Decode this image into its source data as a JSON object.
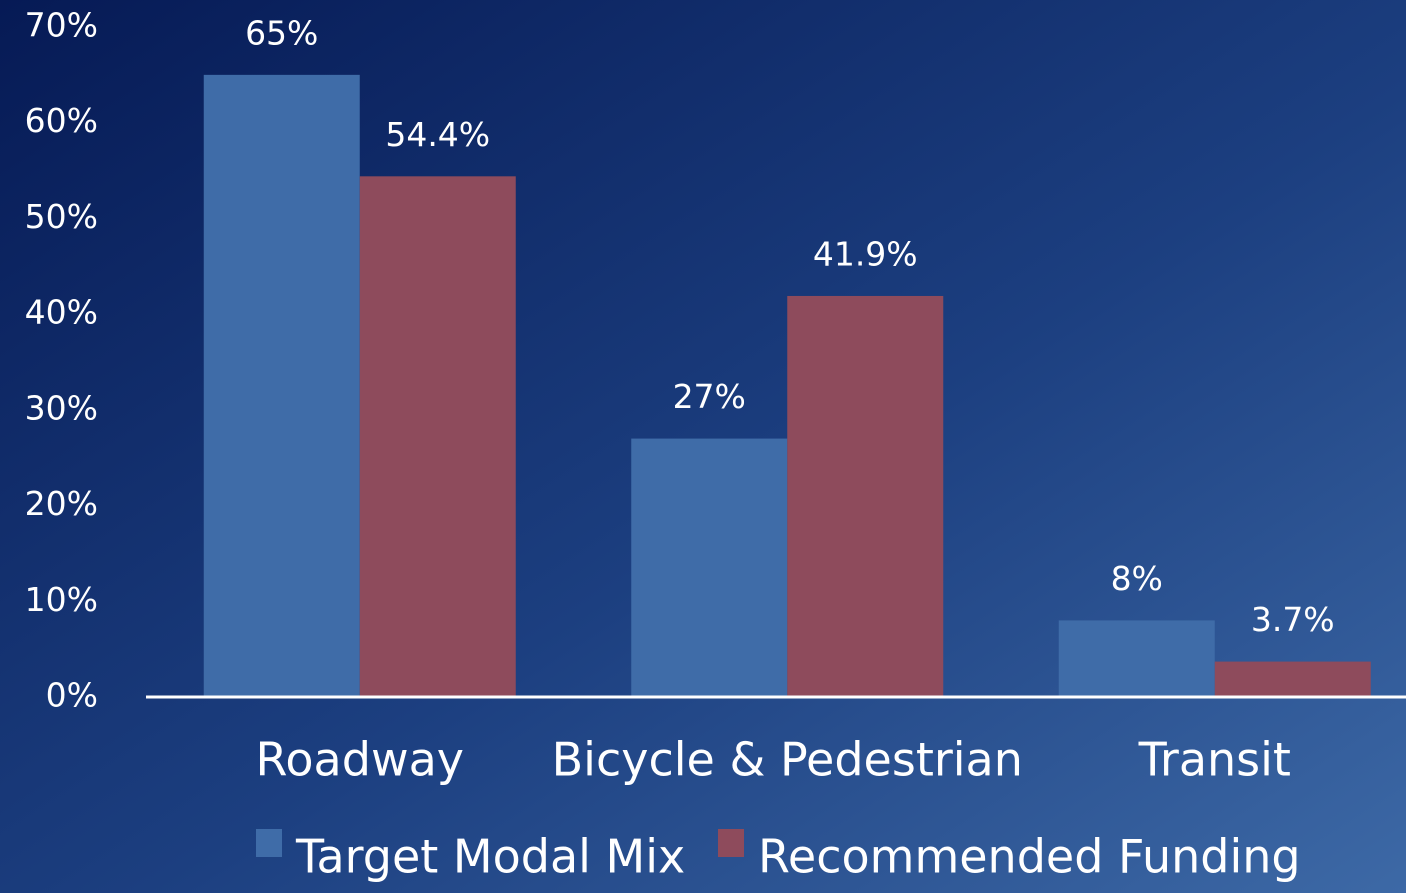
{
  "chart_data": {
    "type": "bar",
    "categories": [
      "Roadway",
      "Bicycle & Pedestrian",
      "Transit"
    ],
    "series": [
      {
        "name": "Target Modal Mix",
        "color": "#3f6ca8",
        "values": [
          65,
          27,
          8
        ],
        "value_labels": [
          "65%",
          "27%",
          "8%"
        ]
      },
      {
        "name": "Recommended Funding",
        "color": "#8e4b5c",
        "values": [
          54.4,
          41.9,
          3.7
        ],
        "value_labels": [
          "54.4%",
          "41.9%",
          "3.7%"
        ]
      }
    ],
    "ylim": [
      0,
      70
    ],
    "yticks": [
      {
        "value": 0,
        "label": "0%"
      },
      {
        "value": 10,
        "label": "10%"
      },
      {
        "value": 20,
        "label": "20%"
      },
      {
        "value": 30,
        "label": "30%"
      },
      {
        "value": 40,
        "label": "40%"
      },
      {
        "value": 50,
        "label": "50%"
      },
      {
        "value": 60,
        "label": "60%"
      },
      {
        "value": 70,
        "label": "70%"
      }
    ],
    "grid": false,
    "legend": "bottom"
  }
}
